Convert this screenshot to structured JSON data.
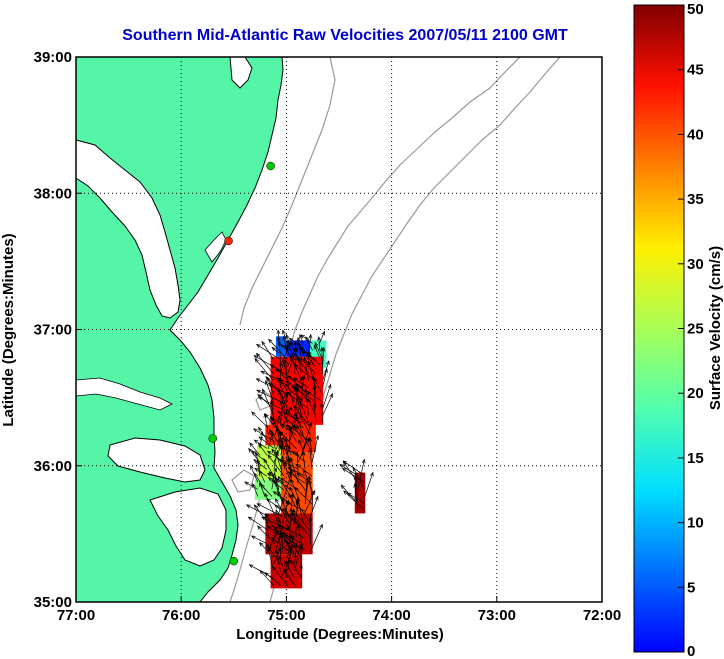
{
  "chart_data": {
    "type": "vector-field-map",
    "title": "Southern Mid-Atlantic Raw Velocities 2007/05/11 2100 GMT",
    "xlabel": "Longitude (Degrees:Minutes)",
    "ylabel": "Latitude (Degrees:Minutes)",
    "x_ticks": [
      "77:00",
      "76:00",
      "75:00",
      "74:00",
      "73:00",
      "72:00"
    ],
    "x_tick_values": [
      -77,
      -76,
      -75,
      -74,
      -73,
      -72
    ],
    "y_ticks": [
      "39:00",
      "38:00",
      "37:00",
      "36:00",
      "35:00"
    ],
    "y_tick_values": [
      39,
      38,
      37,
      36,
      35
    ],
    "xlim": [
      -77,
      -72
    ],
    "ylim": [
      35,
      39
    ],
    "grid": true,
    "grid_style": "dotted",
    "colorbar": {
      "label": "Surface Velocity (cm/s)",
      "ticks": [
        "0",
        "5",
        "10",
        "15",
        "20",
        "25",
        "30",
        "35",
        "40",
        "45",
        "50"
      ],
      "range": [
        0,
        50
      ],
      "colormap": "jet"
    },
    "land_color": "#55f5a8",
    "coastline_color": "#000000",
    "bathymetry_color": "#999999",
    "velocity_regions": [
      {
        "lon_min": -75.0,
        "lon_max": -74.78,
        "lat_min": 36.8,
        "lat_max": 36.92,
        "speed": 8
      },
      {
        "lon_min": -75.1,
        "lon_max": -75.0,
        "lat_min": 36.8,
        "lat_max": 36.95,
        "speed": 11
      },
      {
        "lon_min": -74.78,
        "lon_max": -74.62,
        "lat_min": 36.72,
        "lat_max": 36.92,
        "speed": 22
      },
      {
        "lon_min": -75.15,
        "lon_max": -74.65,
        "lat_min": 36.3,
        "lat_max": 36.8,
        "speed": 44
      },
      {
        "lon_min": -75.2,
        "lon_max": -74.72,
        "lat_min": 36.1,
        "lat_max": 36.3,
        "speed": 42
      },
      {
        "lon_min": -75.28,
        "lon_max": -75.05,
        "lat_min": 35.9,
        "lat_max": 36.15,
        "speed": 28
      },
      {
        "lon_min": -75.3,
        "lon_max": -75.05,
        "lat_min": 35.75,
        "lat_max": 35.9,
        "speed": 25
      },
      {
        "lon_min": -75.05,
        "lon_max": -74.75,
        "lat_min": 35.65,
        "lat_max": 36.1,
        "speed": 40
      },
      {
        "lon_min": -75.2,
        "lon_max": -74.75,
        "lat_min": 35.35,
        "lat_max": 35.65,
        "speed": 47
      },
      {
        "lon_min": -75.15,
        "lon_max": -74.85,
        "lat_min": 35.1,
        "lat_max": 35.35,
        "speed": 46
      },
      {
        "lon_min": -74.35,
        "lon_max": -74.25,
        "lat_min": 35.65,
        "lat_max": 35.95,
        "speed": 48
      }
    ],
    "stations": [
      {
        "lon": -75.15,
        "lat": 38.2,
        "color": "#00cc00"
      },
      {
        "lon": -75.55,
        "lat": 37.65,
        "color": "#ff2200"
      },
      {
        "lon": -75.7,
        "lat": 36.2,
        "color": "#00cc00"
      },
      {
        "lon": -75.5,
        "lat": 35.3,
        "color": "#00cc00"
      }
    ]
  }
}
